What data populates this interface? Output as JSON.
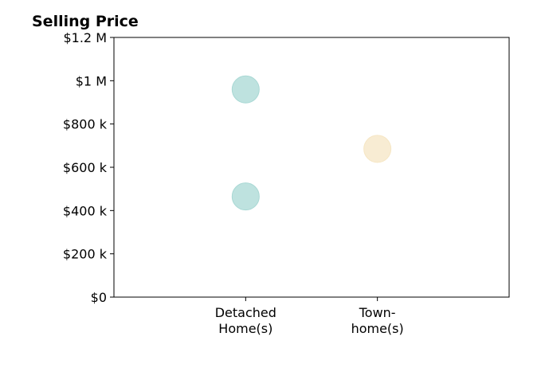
{
  "chart_data": {
    "type": "scatter",
    "title": "Selling Price",
    "xlabel": "",
    "ylabel": "",
    "categories": [
      {
        "lines": [
          "Detached",
          "Home(s)"
        ]
      },
      {
        "lines": [
          "Town-",
          "home(s)"
        ]
      }
    ],
    "points": [
      {
        "category_index": 0,
        "y": 960000,
        "color": "#a8d8d4"
      },
      {
        "category_index": 0,
        "y": 465000,
        "color": "#a8d8d4"
      },
      {
        "category_index": 1,
        "y": 685000,
        "color": "#f6e6c4"
      }
    ],
    "x_range": [
      -1,
      2
    ],
    "ylim": [
      0,
      1200000
    ],
    "y_ticks": [
      {
        "value": 0,
        "label": "$0"
      },
      {
        "value": 200000,
        "label": "$200 k"
      },
      {
        "value": 400000,
        "label": "$400 k"
      },
      {
        "value": 600000,
        "label": "$600 k"
      },
      {
        "value": 800000,
        "label": "$800 k"
      },
      {
        "value": 1000000,
        "label": "$1 M"
      },
      {
        "value": 1200000,
        "label": "$1.2 M"
      }
    ],
    "grid": false,
    "legend": "none"
  }
}
